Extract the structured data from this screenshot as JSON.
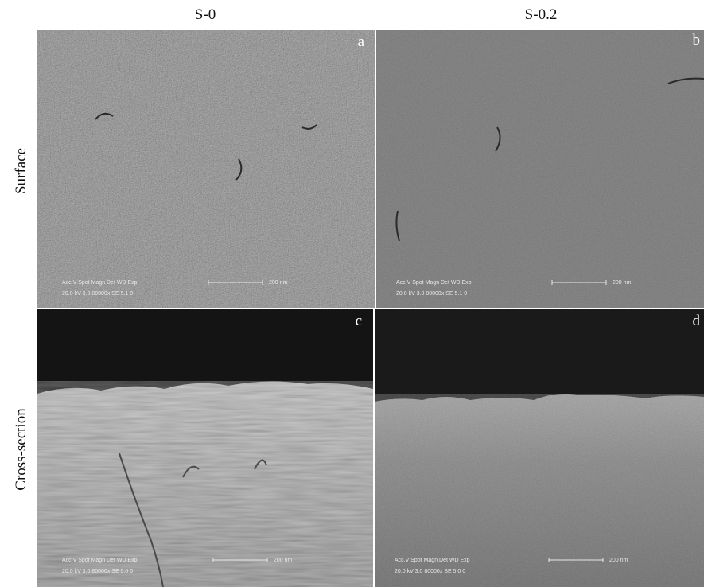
{
  "columns": [
    "S-0",
    "S-0.2"
  ],
  "rows": [
    "Surface",
    "Cross-section"
  ],
  "panels": [
    {
      "label": "a",
      "info_line1": "Acc.V  Spot Magn   Det  WD  Exp",
      "info_line2": "20.0 kV 3.0  80000x  SE  5.1   0",
      "scale_bar": "200 nm"
    },
    {
      "label": "b",
      "info_line1": "Acc.V  Spot Magn   Det  WD  Exp",
      "info_line2": "20.0 kV 3.0  80000x  SE  5.1   0",
      "scale_bar": "200 nm"
    },
    {
      "label": "c",
      "info_line1": "Acc.V  Spot Magn   Det  WD  Exp",
      "info_line2": "20.0 kV 3.0  80000x  SE  5.0   0",
      "scale_bar": "200 nm"
    },
    {
      "label": "d",
      "info_line1": "Acc.V  Spot Magn   Det  WD  Exp",
      "info_line2": "20.0 kV 3.0  80000x  SE  5.0   0",
      "scale_bar": "200 nm"
    }
  ]
}
